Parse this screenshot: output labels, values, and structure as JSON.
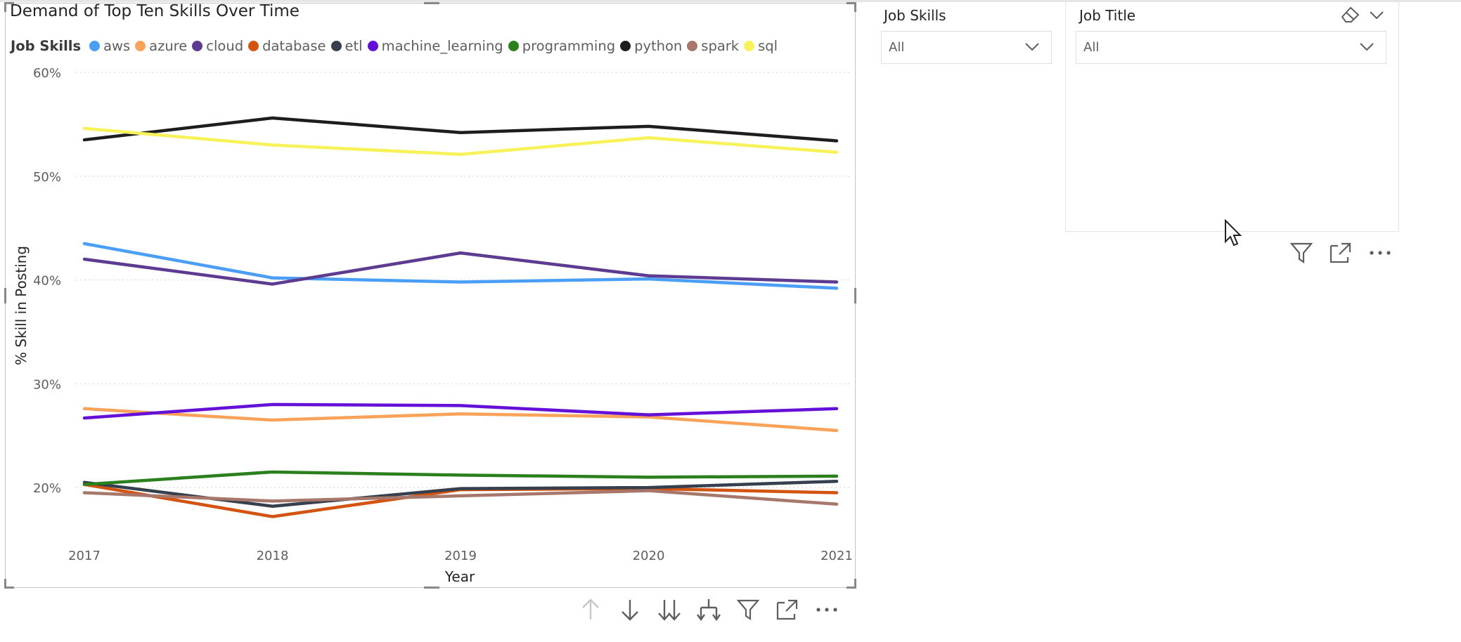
{
  "chart_data": {
    "type": "line",
    "title": "Demand of Top Ten Skills Over Time",
    "legend_title": "Job Skills",
    "legend_placement": "top-left",
    "xlabel": "Year",
    "ylabel": "% Skill in Posting",
    "x": [
      "2017",
      "2018",
      "2019",
      "2020",
      "2021"
    ],
    "ylim": [
      15,
      60
    ],
    "yticks": [
      "60%",
      "50%",
      "40%",
      "30%",
      "20%"
    ],
    "ytick_values": [
      60,
      50,
      40,
      30,
      20
    ],
    "grid": true,
    "series": [
      {
        "name": "aws",
        "color": "#4b9ef5",
        "values": [
          43.5,
          40.2,
          39.8,
          40.1,
          39.2
        ]
      },
      {
        "name": "azure",
        "color": "#f9a25a",
        "values": [
          27.6,
          26.5,
          27.1,
          26.8,
          25.5
        ]
      },
      {
        "name": "cloud",
        "color": "#5c3b91",
        "values": [
          42.0,
          39.6,
          42.6,
          40.4,
          39.8
        ]
      },
      {
        "name": "database",
        "color": "#d35411",
        "values": [
          20.3,
          17.2,
          19.8,
          19.9,
          19.5
        ]
      },
      {
        "name": "etl",
        "color": "#363f4d",
        "values": [
          20.5,
          18.2,
          19.9,
          20.0,
          20.6
        ]
      },
      {
        "name": "machine_learning",
        "color": "#6410d6",
        "values": [
          26.7,
          28.0,
          27.9,
          27.0,
          27.6
        ]
      },
      {
        "name": "programming",
        "color": "#2b7f1c",
        "values": [
          20.3,
          21.5,
          21.2,
          21.0,
          21.1
        ]
      },
      {
        "name": "python",
        "color": "#1d1d1d",
        "values": [
          53.5,
          55.6,
          54.2,
          54.8,
          53.4
        ]
      },
      {
        "name": "spark",
        "color": "#a6776a",
        "values": [
          19.5,
          18.7,
          19.2,
          19.7,
          18.4
        ]
      },
      {
        "name": "sql",
        "color": "#f7f25a",
        "values": [
          54.6,
          53.0,
          52.1,
          53.7,
          52.3
        ]
      }
    ]
  },
  "slicers": {
    "job_skills": {
      "title": "Job Skills",
      "value": "All"
    },
    "job_title": {
      "title": "Job Title",
      "value": "All"
    }
  },
  "icons": {
    "chart_toolbar": [
      "arrow-up-icon",
      "arrow-down-icon",
      "double-arrow-down-icon",
      "expand-hierarchy-icon",
      "filter-icon",
      "focus-mode-icon",
      "more-options-icon"
    ],
    "slicer_toolbar": [
      "filter-icon",
      "focus-mode-icon",
      "more-options-icon"
    ],
    "slicer_header": [
      "eraser-icon",
      "chevron-down-icon"
    ]
  }
}
